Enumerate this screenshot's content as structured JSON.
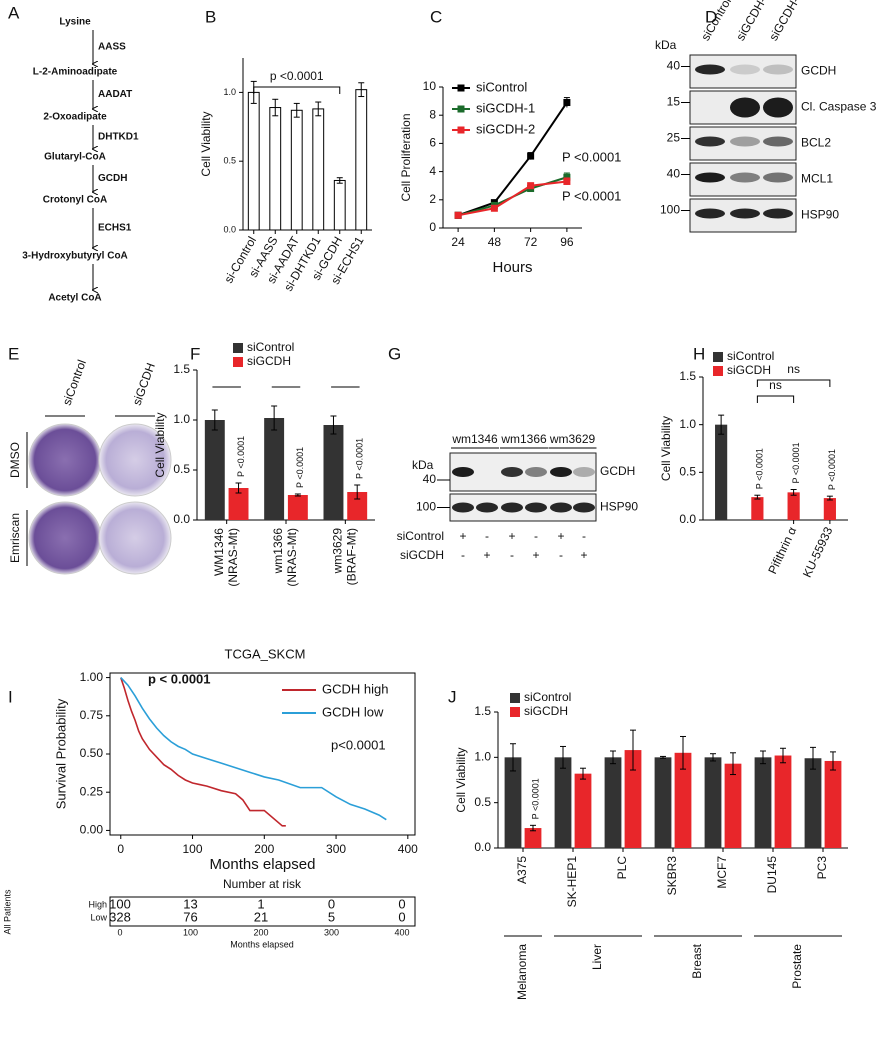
{
  "pathway": {
    "label": "A",
    "metabolites": [
      "Lysine",
      "L-2-Aminoadipate",
      "2-Oxoadipate",
      "Glutaryl-CoA",
      "Crotonyl CoA",
      "3-Hydroxybutyryl CoA",
      "Acetyl CoA"
    ],
    "enzymes": [
      "AASS",
      "AADAT",
      "DHTKD1",
      "GCDH",
      "ECHS1"
    ]
  },
  "blot_d": {
    "label": "D",
    "unit": "kDa",
    "lanes": [
      "siControl",
      "siGCDH-1",
      "siGCDH-2"
    ],
    "rows": [
      {
        "name": "GCDH",
        "kda": 40
      },
      {
        "name": "Cl. Caspase 3",
        "kda": 15
      },
      {
        "name": "BCL2",
        "kda": 25
      },
      {
        "name": "MCL1",
        "kda": 40
      },
      {
        "name": "HSP90",
        "kda": 100
      }
    ]
  },
  "image_e": {
    "label": "E",
    "columns": [
      "siControl",
      "siGCDH"
    ],
    "rows": [
      "DMSO",
      "Emriscan"
    ]
  },
  "blot_g": {
    "label": "G",
    "unit": "kDa",
    "cell_lines": [
      "wm1346",
      "wm1366",
      "wm3629"
    ],
    "rows": [
      {
        "name": "GCDH",
        "kda": 40
      },
      {
        "name": "HSP90",
        "kda": 100
      }
    ],
    "conditions": [
      {
        "name": "siControl",
        "signs": [
          "+",
          "-",
          "+",
          "-",
          "+",
          "-"
        ]
      },
      {
        "name": "siGCDH",
        "signs": [
          "-",
          "+",
          "-",
          "+",
          "-",
          "+"
        ]
      }
    ]
  },
  "chart_data": [
    {
      "type": "bar",
      "label": "B",
      "ylabel": "Cell Viability",
      "categories": [
        "si-Control",
        "si-AASS",
        "si-AADAT",
        "si-DHTKD1",
        "si-GCDH",
        "si-ECHS1"
      ],
      "values": [
        1.0,
        0.89,
        0.87,
        0.88,
        0.36,
        1.02
      ],
      "errors": [
        0.08,
        0.06,
        0.05,
        0.05,
        0.02,
        0.05
      ],
      "color": "#ffffff",
      "edgecolor": "#000000",
      "ylim": [
        0,
        1.25
      ],
      "yticks": [
        {
          "value": 0,
          "label": "0.0"
        },
        {
          "value": 0.5,
          "label": "0.5"
        },
        {
          "value": 1,
          "label": "1.0"
        }
      ],
      "brackets": [
        "p <0.0001"
      ]
    },
    {
      "type": "line",
      "label": "C",
      "xlabel": "Hours",
      "ylabel": "Cell Proliferation",
      "x": [
        24,
        48,
        72,
        96
      ],
      "series": [
        {
          "name": "siControl",
          "color": "#000000",
          "values": [
            0.9,
            1.8,
            5.1,
            8.9
          ],
          "errors": [
            0.1,
            0.15,
            0.25,
            0.35
          ]
        },
        {
          "name": "siGCDH-1",
          "color": "#1b6b2b",
          "values": [
            0.9,
            1.6,
            2.8,
            3.6
          ],
          "errors": [
            0.1,
            0.12,
            0.2,
            0.3
          ]
        },
        {
          "name": "siGCDH-2",
          "color": "#e8262a",
          "values": [
            0.9,
            1.4,
            3.0,
            3.3
          ],
          "errors": [
            0.1,
            0.12,
            0.2,
            0.25
          ]
        }
      ],
      "xlim": [
        14,
        106
      ],
      "xticks": [
        24,
        48,
        72,
        96
      ],
      "ylim": [
        0,
        10
      ],
      "yticks": [
        0,
        2,
        4,
        6,
        8,
        10
      ],
      "legend": "upper left",
      "annotations": [
        {
          "text": "P <0.0001",
          "color": "#1b6b2b"
        },
        {
          "text": "P <0.0001",
          "color": "#e8262a"
        }
      ]
    },
    {
      "type": "bar",
      "label": "F",
      "ylabel": "Cell Viability",
      "categories": [
        "WM1346",
        "wm1366",
        "wm3629"
      ],
      "category_notes": [
        "(NRAS-Mt)",
        "(NRAS-Mt)",
        "(BRAF-Mt)"
      ],
      "series": [
        {
          "name": "siControl",
          "color": "#333333",
          "values": [
            1.0,
            1.02,
            0.95
          ],
          "errors": [
            0.1,
            0.12,
            0.09
          ]
        },
        {
          "name": "siGCDH",
          "color": "#e8262a",
          "values": [
            0.32,
            0.25,
            0.28
          ],
          "errors": [
            0.05,
            0.01,
            0.07
          ],
          "annotations": [
            "P <0.0001",
            "P <0.0001",
            "P <0.0001"
          ]
        }
      ],
      "ylim": [
        0,
        1.5
      ],
      "yticks": [
        {
          "value": 0,
          "label": "0.0"
        },
        {
          "value": 0.5,
          "label": "0.5"
        },
        {
          "value": 1,
          "label": "1.0"
        },
        {
          "value": 1.5,
          "label": "1.5"
        }
      ],
      "legend": "upper left"
    },
    {
      "type": "bar",
      "label": "H",
      "ylabel": "Cell Viability",
      "categories": [
        null,
        null,
        "Pifithrin α",
        "KU-55933"
      ],
      "series": [
        {
          "name": "siControl",
          "color": "#333333",
          "values": [
            1.0,
            null,
            null,
            null
          ],
          "errors": [
            0.1,
            null,
            null,
            null
          ]
        },
        {
          "name": "siGCDH",
          "color": "#e8262a",
          "values": [
            null,
            0.24,
            0.29,
            0.23
          ],
          "errors": [
            null,
            0.02,
            0.03,
            0.02
          ],
          "annotations": [
            null,
            "P <0.0001",
            "P <0.0001",
            "P <0.0001"
          ]
        }
      ],
      "ylim": [
        0,
        1.5
      ],
      "yticks": [
        {
          "value": 0,
          "label": "0.0"
        },
        {
          "value": 0.5,
          "label": "0.5"
        },
        {
          "value": 1,
          "label": "1.0"
        },
        {
          "value": 1.5,
          "label": "1.5"
        }
      ],
      "legend": "upper left",
      "brackets": [
        "ns",
        "ns"
      ]
    },
    {
      "type": "line",
      "label": "I",
      "title": "TCGA_SKCM",
      "xlabel": "Months elapsed",
      "ylabel": "Survival Probability",
      "series": [
        {
          "name": "GCDH high",
          "color": "#c0272d",
          "x": [
            0,
            5,
            10,
            15,
            20,
            25,
            30,
            40,
            50,
            60,
            70,
            80,
            90,
            100,
            110,
            120,
            140,
            160,
            170,
            180,
            200,
            225,
            230
          ],
          "values": [
            1.0,
            0.93,
            0.85,
            0.78,
            0.72,
            0.65,
            0.6,
            0.53,
            0.48,
            0.43,
            0.4,
            0.36,
            0.33,
            0.31,
            0.3,
            0.29,
            0.26,
            0.24,
            0.2,
            0.13,
            0.13,
            0.03,
            0.03
          ]
        },
        {
          "name": "GCDH low",
          "color": "#2b9fd8",
          "x": [
            0,
            10,
            20,
            30,
            40,
            50,
            60,
            70,
            80,
            90,
            100,
            120,
            140,
            160,
            180,
            200,
            220,
            250,
            280,
            300,
            320,
            340,
            360,
            370
          ],
          "values": [
            1.0,
            0.95,
            0.88,
            0.8,
            0.73,
            0.67,
            0.62,
            0.58,
            0.55,
            0.53,
            0.5,
            0.47,
            0.44,
            0.41,
            0.38,
            0.35,
            0.33,
            0.28,
            0.28,
            0.22,
            0.17,
            0.14,
            0.1,
            0.07
          ]
        }
      ],
      "xlim": [
        -15,
        410
      ],
      "xticks": [
        0,
        100,
        200,
        300,
        400
      ],
      "ylim": [
        -0.03,
        1.03
      ],
      "yticks": [
        {
          "value": 0,
          "label": "0.00"
        },
        {
          "value": 0.25,
          "label": "0.25"
        },
        {
          "value": 0.5,
          "label": "0.50"
        },
        {
          "value": 0.75,
          "label": "0.75"
        },
        {
          "value": 1,
          "label": "1.00"
        }
      ],
      "legend": "upper right",
      "annotations": [
        {
          "text": "p < 0.0001"
        },
        {
          "text": "p<0.0001"
        }
      ],
      "risk_table": {
        "title": "Number at risk",
        "side_label": "All Patients",
        "xlabel": "Months elapsed",
        "xlim": [
          0,
          400
        ],
        "xticks": [
          0,
          100,
          200,
          300,
          400
        ],
        "rows": [
          {
            "name": "High",
            "color": "#c0272d",
            "values": [
              100,
              13,
              1,
              0,
              0
            ]
          },
          {
            "name": "Low",
            "color": "#2b9fd8",
            "values": [
              328,
              76,
              21,
              5,
              0
            ]
          }
        ]
      }
    },
    {
      "type": "bar",
      "label": "J",
      "ylabel": "Cell Viability",
      "categories": [
        "A375",
        "SK-HEP1",
        "PLC",
        "SKBR3",
        "MCF7",
        "DU145",
        "PC3"
      ],
      "series": [
        {
          "name": "siControl",
          "color": "#333333",
          "values": [
            1.0,
            1.0,
            1.0,
            1.0,
            1.0,
            1.0,
            0.99
          ],
          "errors": [
            0.15,
            0.12,
            0.07,
            0.01,
            0.04,
            0.07,
            0.12
          ]
        },
        {
          "name": "siGCDH",
          "color": "#e8262a",
          "values": [
            0.22,
            0.82,
            1.08,
            1.05,
            0.93,
            1.02,
            0.96
          ],
          "errors": [
            0.03,
            0.06,
            0.22,
            0.18,
            0.12,
            0.08,
            0.1
          ],
          "annotations": [
            "P <0.0001",
            null,
            null,
            null,
            null,
            null,
            null
          ]
        }
      ],
      "ylim": [
        0,
        1.5
      ],
      "yticks": [
        {
          "value": 0,
          "label": "0.0"
        },
        {
          "value": 0.5,
          "label": "0.5"
        },
        {
          "value": 1,
          "label": "1.0"
        },
        {
          "value": 1.5,
          "label": "1.5"
        }
      ],
      "legend": "upper left",
      "groups": [
        {
          "name": "Melanoma",
          "categories": [
            "A375"
          ]
        },
        {
          "name": "Liver",
          "categories": [
            "SK-HEP1",
            "PLC"
          ]
        },
        {
          "name": "Breast",
          "categories": [
            "SKBR3",
            "MCF7"
          ]
        },
        {
          "name": "Prostate",
          "categories": [
            "DU145",
            "PC3"
          ]
        }
      ]
    }
  ]
}
